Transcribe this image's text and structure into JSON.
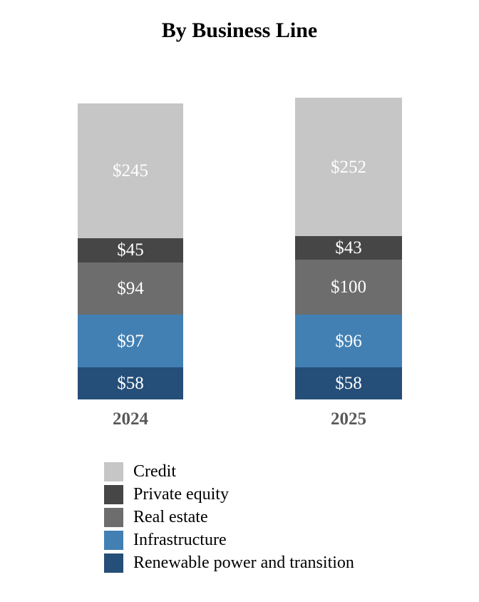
{
  "title": "By Business Line",
  "chart_data": {
    "type": "bar",
    "subtype": "stacked",
    "orientation": "vertical",
    "categories": [
      "2024",
      "2025"
    ],
    "series": [
      {
        "name": "Credit",
        "color": "#C6C6C6",
        "values": [
          245,
          252
        ]
      },
      {
        "name": "Private equity",
        "color": "#464646",
        "values": [
          45,
          43
        ]
      },
      {
        "name": "Real estate",
        "color": "#6D6D6D",
        "values": [
          94,
          100
        ]
      },
      {
        "name": "Infrastructure",
        "color": "#4280B4",
        "values": [
          97,
          96
        ]
      },
      {
        "name": "Renewable power and transition",
        "color": "#254E78",
        "values": [
          58,
          58
        ]
      }
    ],
    "totals": [
      539,
      549
    ],
    "value_prefix": "$",
    "value_labels": [
      [
        "$245",
        "$45",
        "$94",
        "$97",
        "$58"
      ],
      [
        "$252",
        "$43",
        "$100",
        "$96",
        "$58"
      ]
    ],
    "value_label_color": "#FFFFFF",
    "axis_label_color": "#595959",
    "title_color": "#000000",
    "grid": false,
    "axes_visible": false,
    "legend_position": "bottom-left",
    "legend_text_color": "#000000"
  }
}
